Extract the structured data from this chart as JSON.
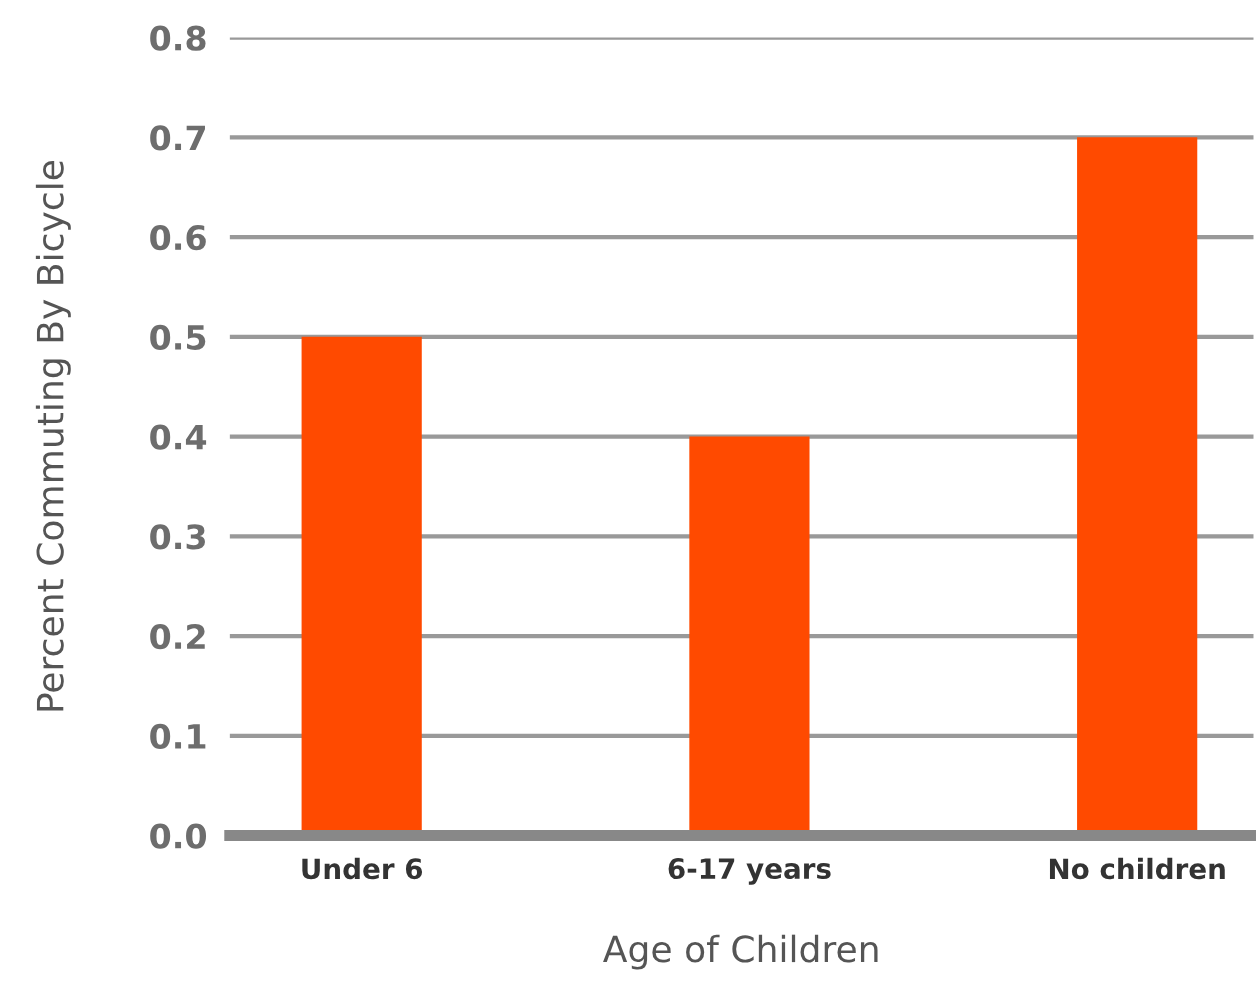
{
  "chart_data": {
    "type": "bar",
    "xlabel": "Age of Children",
    "ylabel": "Percent Commuting By Bicycle",
    "categories": [
      "Under 6",
      "6-17 years",
      "No children"
    ],
    "values": [
      0.5,
      0.4,
      0.7
    ],
    "color": "#ff4a00",
    "ylim": [
      0,
      0.8
    ],
    "yticks": [
      {
        "value": 0,
        "label": "0.0"
      },
      0.1,
      0.2,
      0.3,
      0.4,
      0.5,
      0.6,
      0.7,
      0.8
    ],
    "grid": "y"
  }
}
